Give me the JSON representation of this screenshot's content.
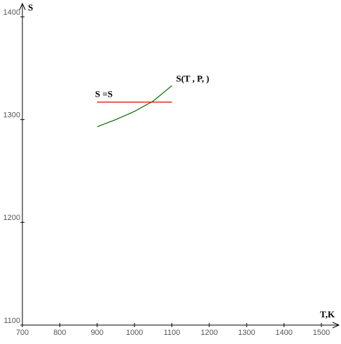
{
  "chart_data": {
    "type": "line",
    "y_label": "S",
    "x_label": "T,K",
    "series": [
      {
        "name": "S(T , P, )",
        "color": "#007000",
        "x": [
          900,
          950,
          1000,
          1050,
          1100
        ],
        "values": [
          1293,
          1300,
          1308,
          1318,
          1333
        ]
      },
      {
        "name": "S =S",
        "color": "#e00000",
        "x": [
          900,
          1100
        ],
        "values": [
          1317,
          1317
        ]
      }
    ],
    "xlim": [
      700,
      1500
    ],
    "xticks": [
      700,
      800,
      900,
      1000,
      1100,
      1200,
      1300,
      1400,
      1500
    ],
    "ylim": [
      1100,
      1400
    ],
    "yticks": [
      1100,
      1200,
      1300,
      1400
    ]
  }
}
